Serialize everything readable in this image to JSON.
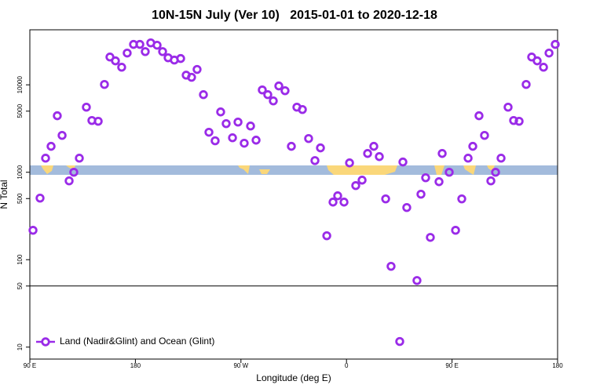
{
  "chart_data": {
    "type": "scatter",
    "title": "10N-15N July (Ver 10)   2015-01-01 to 2020-12-18",
    "xlabel": "Longitude (deg E)",
    "ylabel": "N Total",
    "log_y": true,
    "legend": "lower left",
    "reference_line": 50,
    "xlim": [
      90,
      540
    ],
    "ylim": [
      7.3,
      42600
    ],
    "xticks": [
      {
        "value": 90,
        "label": "90 E"
      },
      180,
      {
        "value": 270,
        "label": "90 W"
      },
      {
        "value": 360,
        "label": "0"
      },
      {
        "value": 450,
        "label": "90 E"
      },
      {
        "value": 540,
        "label": "180"
      }
    ],
    "yticks": [
      10,
      50,
      100,
      500,
      1000,
      5000,
      10000
    ],
    "x": [
      92.7,
      98.7,
      103.4,
      108.1,
      113.4,
      117.5,
      123.5,
      127.5,
      132.2,
      138.2,
      142.9,
      148.3,
      153.6,
      158.3,
      163.0,
      168.3,
      173.0,
      178.4,
      183.8,
      188.4,
      193.1,
      198.5,
      203.2,
      207.9,
      213.2,
      218.6,
      223.3,
      227.9,
      232.6,
      238.0,
      242.7,
      248.0,
      252.7,
      257.4,
      262.8,
      267.5,
      272.8,
      278.2,
      282.9,
      288.2,
      292.9,
      297.6,
      302.3,
      307.6,
      313.0,
      317.7,
      322.4,
      327.7,
      333.1,
      337.8,
      343.2,
      348.5,
      352.5,
      357.9,
      362.6,
      367.9,
      373.3,
      378.0,
      383.3,
      388.0,
      393.4,
      398.0,
      405.4,
      408.1,
      411.4,
      420.1,
      423.5,
      427.5,
      431.5,
      438.9,
      441.6,
      447.6,
      453.0,
      458.3,
      463.7,
      467.7,
      473.0,
      477.7,
      483.1,
      487.1,
      491.8,
      497.8,
      502.5,
      507.2,
      513.2,
      517.9,
      522.6,
      528.0,
      532.7,
      538.0
    ],
    "series": [
      {
        "name": "Land (Nadir&Glint) and Ocean (Glint)",
        "color": "#9a2be8",
        "values": [
          217,
          506,
          1450,
          1980,
          4430,
          2640,
          797,
          1000,
          1450,
          5550,
          3910,
          3830,
          10100,
          20800,
          18800,
          15900,
          23100,
          29000,
          29000,
          24000,
          30200,
          28400,
          24000,
          20400,
          19200,
          20000,
          12900,
          12200,
          15000,
          7720,
          2870,
          2290,
          4900,
          3600,
          2480,
          3750,
          2150,
          3380,
          2330,
          8740,
          7720,
          6550,
          9710,
          8570,
          1980,
          5550,
          5220,
          2430,
          1360,
          1900,
          188,
          456,
          538,
          456,
          1280,
          704,
          813,
          1640,
          1980,
          1510,
          496,
          84,
          11.6,
          1310,
          395,
          57.8,
          561,
          866,
          180,
          780,
          1640,
          1000,
          217,
          496,
          1450,
          1980,
          4430,
          2640,
          797,
          1000,
          1450,
          5550,
          3910,
          3830,
          10100,
          20800,
          18800,
          15900,
          23100,
          29000
        ]
      }
    ]
  }
}
